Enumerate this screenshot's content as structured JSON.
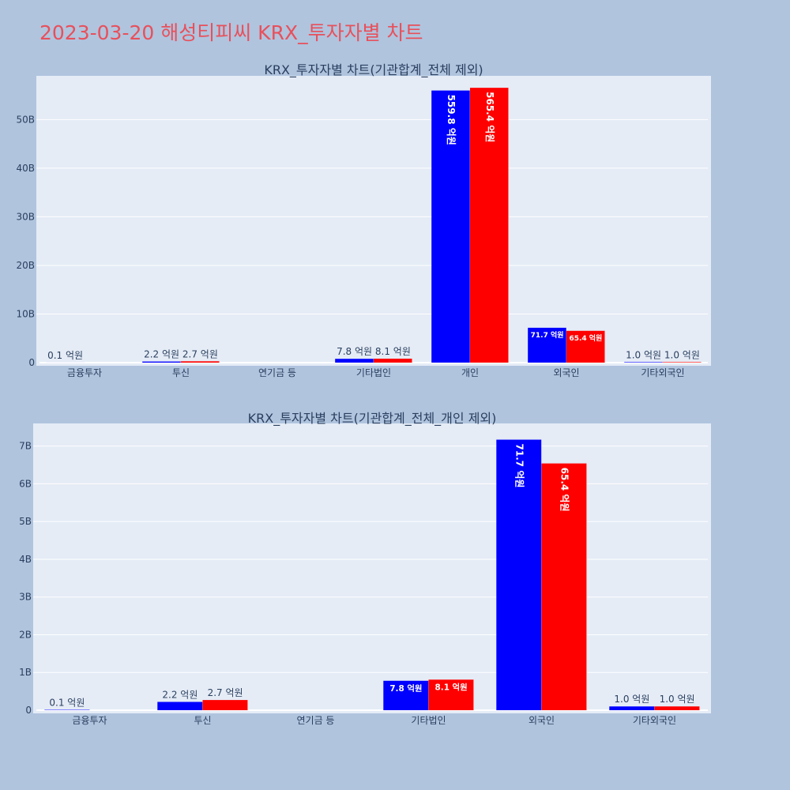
{
  "page": {
    "title": "2023-03-20 해성티피씨 KRX_투자자별 차트"
  },
  "colors": {
    "background": "#b0c4de",
    "plot_bg": "#e5ecf6",
    "buy": "#0000ff",
    "sell": "#ff0000",
    "title": "#e8505b"
  },
  "chart_data": [
    {
      "type": "bar",
      "title": "KRX_투자자별 차트(기관합계_전체 제외)",
      "categories": [
        "금융투자",
        "투신",
        "연기금 등",
        "기타법인",
        "개인",
        "외국인",
        "기타외국인"
      ],
      "series": [
        {
          "values": [
            10000000,
            220000000,
            0,
            780000000,
            55980000000,
            7170000000,
            100000000
          ],
          "labels": [
            "0.1 억원",
            "2.2 억원",
            "",
            "7.8 억원",
            "559.8 억원",
            "71.7 억원",
            "1.0 억원"
          ]
        },
        {
          "values": [
            0,
            270000000,
            0,
            810000000,
            56540000000,
            6540000000,
            100000000
          ],
          "labels": [
            "",
            "2.7 억원",
            "",
            "8.1 억원",
            "565.4 억원",
            "65.4 억원",
            "1.0 억원"
          ]
        }
      ],
      "ylim": [
        0,
        59000000000
      ],
      "yticks": [
        0,
        10000000000,
        20000000000,
        30000000000,
        40000000000,
        50000000000
      ],
      "ytick_labels": [
        "0",
        "10B",
        "20B",
        "30B",
        "40B",
        "50B"
      ],
      "grid": true
    },
    {
      "type": "bar",
      "title": "KRX_투자자별 차트(기관합계_전체_개인 제외)",
      "categories": [
        "금융투자",
        "투신",
        "연기금 등",
        "기타법인",
        "외국인",
        "기타외국인"
      ],
      "series": [
        {
          "values": [
            10000000,
            220000000,
            0,
            780000000,
            7170000000,
            100000000
          ],
          "labels": [
            "0.1 억원",
            "2.2 억원",
            "",
            "7.8 억원",
            "71.7 억원",
            "1.0 억원"
          ]
        },
        {
          "values": [
            0,
            270000000,
            0,
            810000000,
            6540000000,
            100000000
          ],
          "labels": [
            "",
            "2.7 억원",
            "",
            "8.1 억원",
            "65.4 억원",
            "1.0 억원"
          ]
        }
      ],
      "ylim": [
        0,
        7600000000
      ],
      "yticks": [
        0,
        1000000000,
        2000000000,
        3000000000,
        4000000000,
        5000000000,
        6000000000,
        7000000000
      ],
      "ytick_labels": [
        "0",
        "1B",
        "2B",
        "3B",
        "4B",
        "5B",
        "6B",
        "7B"
      ],
      "grid": true
    }
  ]
}
